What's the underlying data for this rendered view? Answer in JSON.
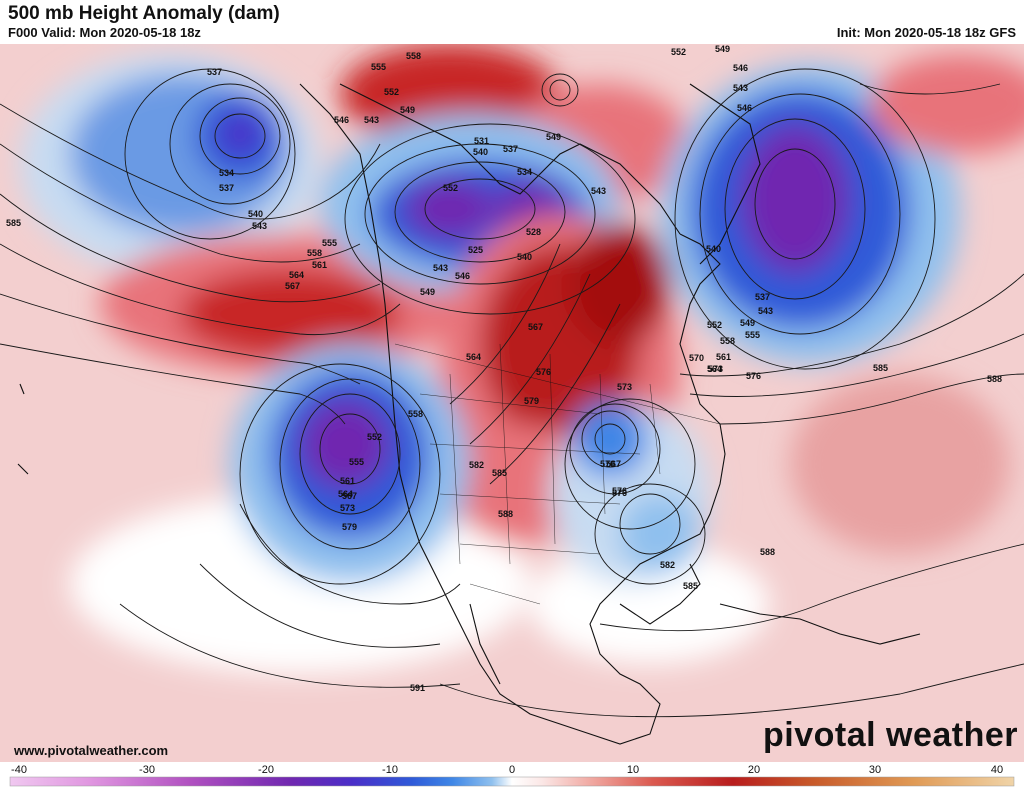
{
  "header": {
    "title": "500 mb Height Anomaly (dam)",
    "valid": "F000 Valid: Mon 2020-05-18 18z",
    "init": "Init: Mon 2020-05-18 18z GFS"
  },
  "footer": {
    "website": "www.pivotalweather.com",
    "brand": "pivotal weather"
  },
  "colorbar": {
    "ticks": [
      "-40",
      "-30",
      "-20",
      "-10",
      "0",
      "10",
      "20",
      "30",
      "40"
    ],
    "colors": [
      "#f0c8f0",
      "#e096e0",
      "#b050c0",
      "#7028b0",
      "#4b2ec8",
      "#2f5ad8",
      "#3f86e6",
      "#8fc0ee",
      "#eaf2fb",
      "#fbe7e6",
      "#f0a7a0",
      "#db5a50",
      "#b81d1d",
      "#c85a2a",
      "#e09a55",
      "#f0d4a8"
    ]
  },
  "map": {
    "contour_labels": [
      "537",
      "534",
      "537",
      "540",
      "543",
      "585",
      "558",
      "555",
      "561",
      "564",
      "567",
      "546",
      "543",
      "549",
      "552",
      "555",
      "558",
      "549",
      "552",
      "531",
      "540",
      "537",
      "534",
      "528",
      "525",
      "540",
      "543",
      "546",
      "549",
      "543",
      "552",
      "549",
      "546",
      "543",
      "546",
      "540",
      "537",
      "543",
      "549",
      "552",
      "555",
      "558",
      "561",
      "564",
      "570",
      "573",
      "576",
      "585",
      "588",
      "564",
      "567",
      "576",
      "573",
      "579",
      "552",
      "555",
      "558",
      "561",
      "564",
      "567",
      "570",
      "573",
      "576",
      "579",
      "582",
      "585",
      "588",
      "567",
      "576",
      "582",
      "585",
      "588",
      "591"
    ],
    "colors": {
      "strong_positive": "#b41919",
      "positive": "#e8737a",
      "weak_positive": "#f4c3c3",
      "background": "#f3cfcf",
      "weak_negative": "#c7dcf2",
      "negative": "#3d6fd6",
      "strong_negative": "#7a25c2"
    }
  }
}
